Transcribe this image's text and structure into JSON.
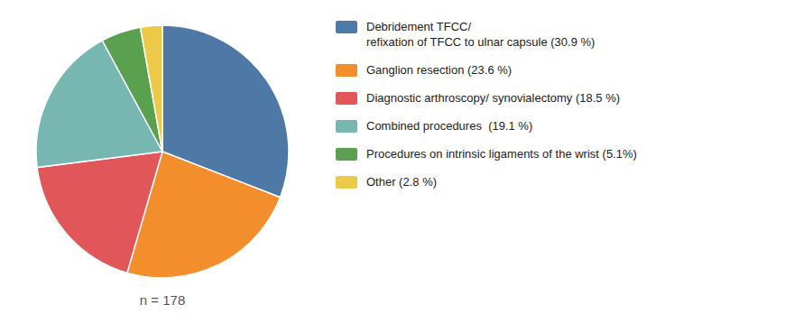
{
  "chart_data": {
    "type": "pie",
    "categories": [
      "Debridement TFCC/\nrefixation of TFCC to ulnar capsule (30.9 %)",
      "Ganglion resection (23.6 %)",
      "Diagnostic arthroscopy/ synovialectomy (18.5 %)",
      "Combined procedures  (19.1 %)",
      "Procedures on intrinsic ligaments of the wrist (5.1%)",
      "Other (2.8 %)"
    ],
    "values": [
      30.9,
      23.6,
      18.5,
      19.1,
      5.1,
      2.8
    ],
    "annotations": [
      "n = 178"
    ],
    "legend": "right"
  }
}
